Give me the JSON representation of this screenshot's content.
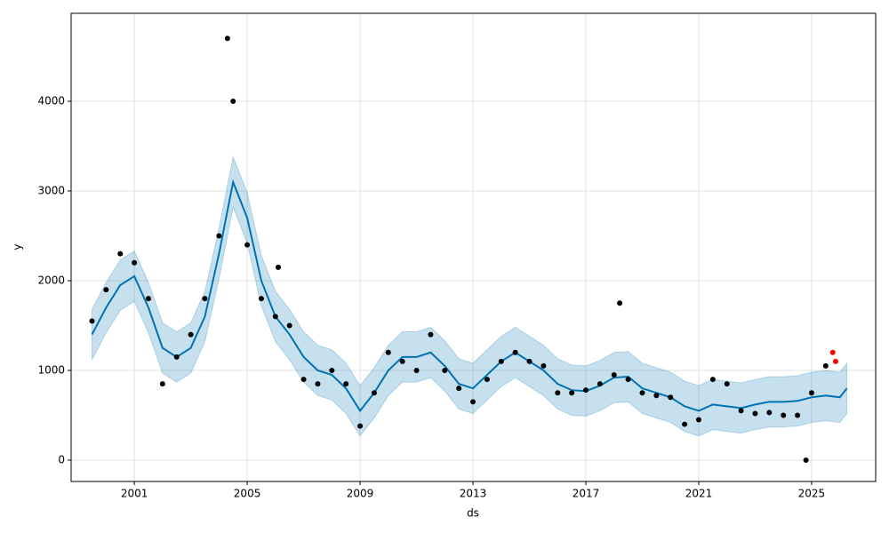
{
  "chart_data": {
    "type": "line",
    "x_label": "ds",
    "y_label": "y",
    "x": [
      1999.5,
      2000.0,
      2000.5,
      2001.0,
      2001.5,
      2002.0,
      2002.5,
      2003.0,
      2003.5,
      2004.0,
      2004.5,
      2005.0,
      2005.5,
      2006.0,
      2006.5,
      2007.0,
      2007.5,
      2008.0,
      2008.5,
      2009.0,
      2009.5,
      2010.0,
      2010.5,
      2011.0,
      2011.5,
      2012.0,
      2012.5,
      2013.0,
      2013.5,
      2014.0,
      2014.5,
      2015.0,
      2015.5,
      2016.0,
      2016.5,
      2017.0,
      2017.5,
      2018.0,
      2018.5,
      2019.0,
      2019.5,
      2020.0,
      2020.5,
      2021.0,
      2021.5,
      2022.0,
      2022.5,
      2023.0,
      2023.5,
      2024.0,
      2024.5,
      2025.0,
      2025.5,
      2026.0,
      2026.25
    ],
    "xlim": [
      1998.76,
      2027.27
    ],
    "xticks": [
      2001,
      2005,
      2009,
      2013,
      2017,
      2021,
      2025
    ],
    "ylim": [
      -238,
      4980
    ],
    "yticks": [
      0,
      1000,
      2000,
      3000,
      4000
    ],
    "grid": true,
    "series": [
      {
        "type": "band",
        "color": "#0072b2",
        "lower": [
          1120,
          1420,
          1670,
          1770,
          1420,
          970,
          870,
          970,
          1320,
          2020,
          2820,
          2420,
          1720,
          1320,
          1120,
          870,
          720,
          670,
          520,
          270,
          470,
          720,
          870,
          870,
          920,
          770,
          570,
          520,
          670,
          820,
          920,
          820,
          720,
          570,
          500,
          490,
          550,
          640,
          650,
          520,
          470,
          420,
          320,
          270,
          340,
          320,
          300,
          340,
          370,
          370,
          380,
          420,
          440,
          420,
          520
        ],
        "upper": [
          1680,
          1980,
          2230,
          2330,
          1980,
          1530,
          1430,
          1530,
          1880,
          2580,
          3380,
          2980,
          2280,
          1880,
          1680,
          1430,
          1280,
          1230,
          1080,
          830,
          1030,
          1280,
          1430,
          1430,
          1480,
          1330,
          1130,
          1080,
          1230,
          1380,
          1480,
          1380,
          1280,
          1130,
          1060,
          1050,
          1110,
          1200,
          1210,
          1080,
          1030,
          980,
          880,
          830,
          900,
          880,
          860,
          900,
          930,
          930,
          940,
          980,
          1000,
          980,
          1080
        ]
      },
      {
        "type": "line",
        "color": "#0072b2",
        "values": [
          1400,
          1700,
          1950,
          2050,
          1700,
          1250,
          1150,
          1250,
          1600,
          2300,
          3100,
          2700,
          2000,
          1600,
          1400,
          1150,
          1000,
          950,
          800,
          550,
          750,
          1000,
          1150,
          1150,
          1200,
          1050,
          850,
          800,
          950,
          1100,
          1200,
          1100,
          1000,
          850,
          780,
          770,
          830,
          920,
          930,
          800,
          750,
          700,
          600,
          550,
          620,
          600,
          580,
          620,
          650,
          650,
          660,
          700,
          720,
          700,
          800
        ]
      },
      {
        "type": "scatter",
        "color": "#000000",
        "values": [
          1550,
          1900,
          2300,
          2200,
          1800,
          850,
          1150,
          1400,
          1800,
          2500,
          4000,
          2400,
          1800,
          1600,
          1500,
          900,
          850,
          1000,
          850,
          380,
          750,
          1200,
          1100,
          1000,
          1400,
          1000,
          800,
          650,
          900,
          1100,
          1200,
          1100,
          1050,
          750,
          750,
          780,
          850,
          950,
          900,
          750,
          720,
          700,
          400,
          450,
          900,
          850,
          550,
          520,
          530,
          500,
          500,
          750,
          1050,
          null,
          null
        ]
      },
      {
        "type": "scatter",
        "color": "#000000",
        "x": [
          2004.3,
          2006.1,
          2018.2,
          2024.8
        ],
        "values": [
          4700,
          2150,
          1750,
          0
        ]
      },
      {
        "type": "scatter",
        "color": "#ff0000",
        "x": [
          2025.75,
          2025.85
        ],
        "values": [
          1200,
          1100
        ]
      }
    ]
  }
}
